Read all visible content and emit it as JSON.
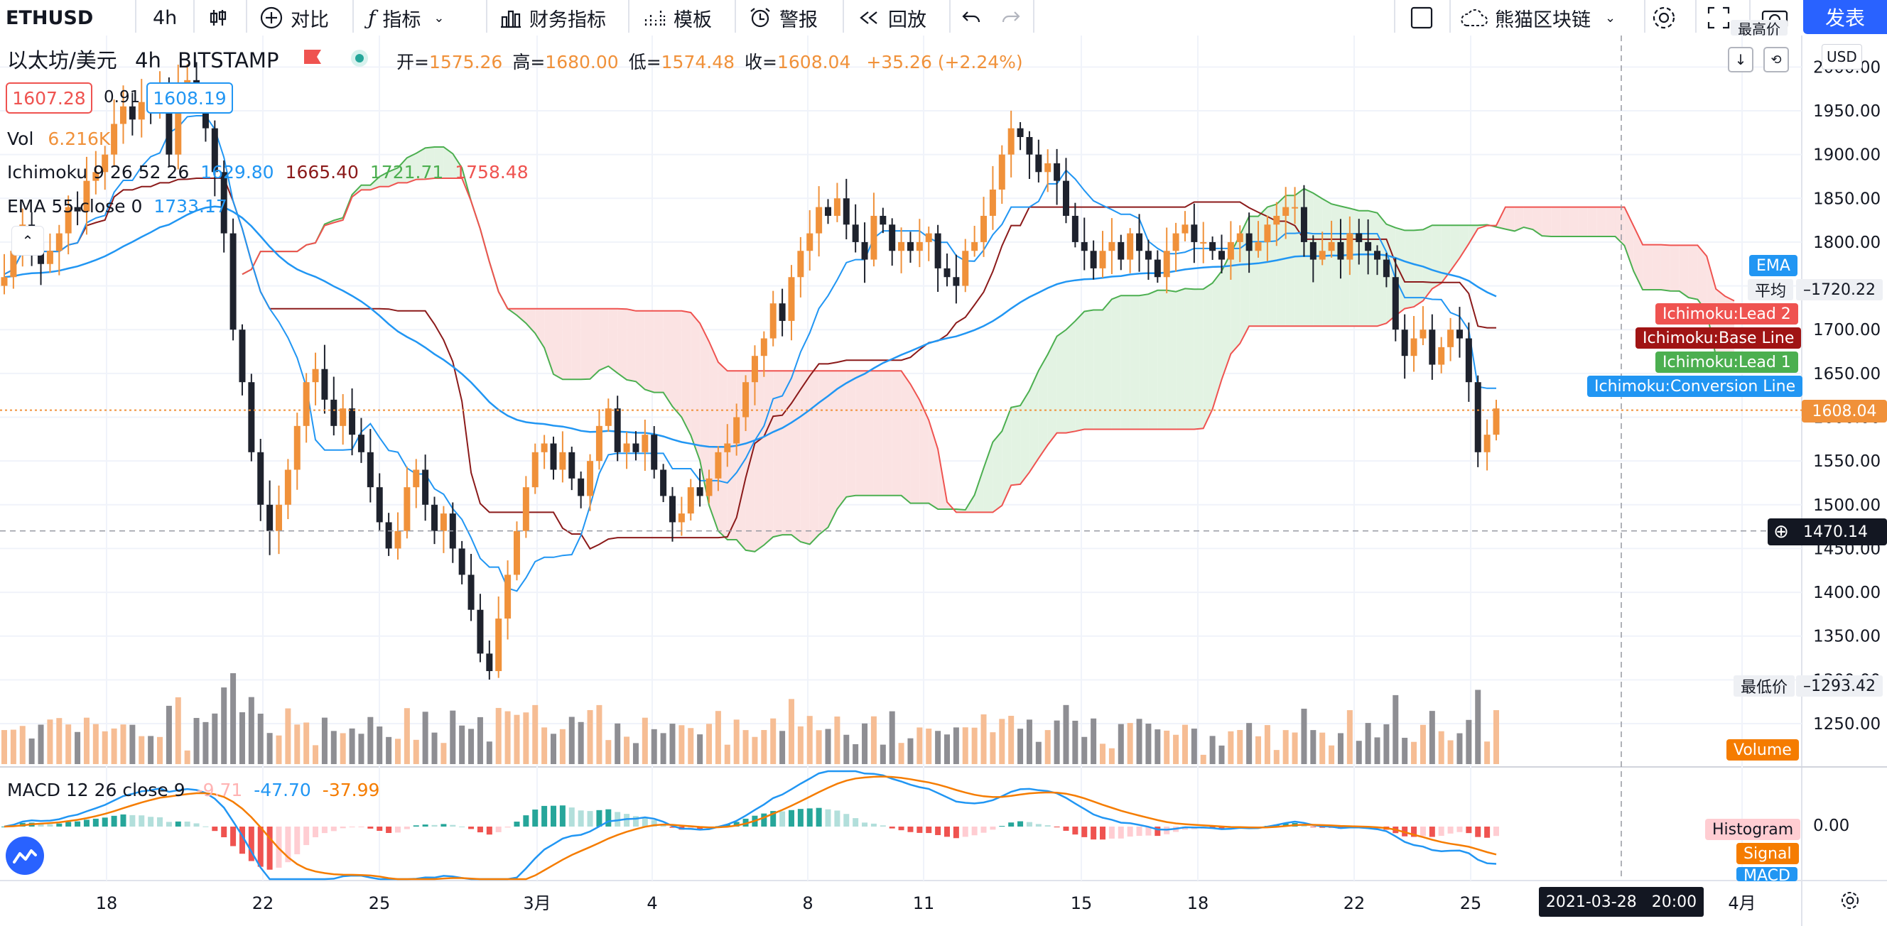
{
  "toolbar": {
    "symbol": "ETHUSD",
    "interval": "4h",
    "compare": "对比",
    "indicators": "指标",
    "financials": "财务指标",
    "templates": "模板",
    "alert": "警报",
    "replay": "回放",
    "layout_name": "熊猫区块链",
    "publish": "发表"
  },
  "legend": {
    "title": "以太坊/美元",
    "interval": "4h",
    "exchange": "BITSTAMP",
    "ohlc": [
      {
        "label": "开=",
        "value": "1575.26"
      },
      {
        "label": "高=",
        "value": "1680.00"
      },
      {
        "label": "低=",
        "value": "1574.48"
      },
      {
        "label": "收=",
        "value": "1608.04"
      }
    ],
    "change": "+35.26 (+2.24%)",
    "bid": "1607.28",
    "spread": "0.91",
    "ask": "1608.19",
    "vol_label": "Vol",
    "vol_value": "6.216K",
    "ichimoku_label": "Ichimoku 9 26 52 26",
    "ichimoku_values": [
      "1629.80",
      "1665.40",
      "1721.71",
      "1758.48"
    ],
    "ema_label": "EMA 55 close 0",
    "ema_value": "1733.17",
    "macd_label": "MACD 12 26 close 9",
    "macd_values": [
      "-9.71",
      "-47.70",
      "-37.99"
    ]
  },
  "price_axis": {
    "currency": "USD",
    "ticks": [
      "2000.00",
      "1950.00",
      "1900.00",
      "1850.00",
      "1800.00",
      "1750.00",
      "1700.00",
      "1650.00",
      "1600.00",
      "1550.00",
      "1500.00",
      "1450.00",
      "1400.00",
      "1350.00",
      "1300.00",
      "1250.00"
    ],
    "top_partial_label": "最高价",
    "avg_label": "平均",
    "avg_value": "1720.22",
    "min_label": "最低价",
    "min_value": "1293.42",
    "last_price": "1608.04",
    "crosshair_price": "1470.14",
    "macd_zero": "0.00"
  },
  "series_tags": {
    "ema": "EMA",
    "lead2": "Ichimoku:Lead 2",
    "base": "Ichimoku:Base Line",
    "lead1": "Ichimoku:Lead 1",
    "conversion": "Ichimoku:Conversion Line",
    "volume": "Volume",
    "histogram": "Histogram",
    "signal": "Signal",
    "macd": "MACD"
  },
  "time_axis": {
    "labels": [
      "18",
      "22",
      "25",
      "3月",
      "4",
      "8",
      "11",
      "15",
      "18",
      "22",
      "25",
      "4月"
    ],
    "crosshair_time": "2021-03-28   20:00"
  },
  "colors": {
    "up": "#f0913a",
    "down": "#1e222d",
    "ema": "#2196f3",
    "base": "#8b1a1a",
    "lead1": "#4caf50",
    "lead2": "#ef5350",
    "cloud_green": "#e3f3e3",
    "cloud_red": "#fbe3e3",
    "vol_up": "#f6bd94",
    "vol_down": "#8e8e93",
    "macd_line": "#2196f3",
    "signal_line": "#f57c00",
    "hist_up_strong": "#26a69a",
    "hist_up_weak": "#b2dfdb",
    "hist_down_strong": "#ef5350",
    "hist_down_weak": "#ffcdd2"
  },
  "chart_data": {
    "type": "candlestick",
    "symbol": "ETHUSD",
    "exchange": "BITSTAMP",
    "interval": "4h",
    "ylim": [
      1200,
      2050
    ],
    "x_labels": [
      "18",
      "22",
      "25",
      "3月",
      "4",
      "8",
      "11",
      "15",
      "18",
      "22",
      "25",
      "4月"
    ],
    "close": [
      1760,
      1790,
      1820,
      1800,
      1775,
      1790,
      1810,
      1840,
      1835,
      1870,
      1880,
      1900,
      1935,
      1955,
      1940,
      1960,
      1950,
      1975,
      1900,
      1980,
      1985,
      1960,
      1930,
      1880,
      1810,
      1700,
      1640,
      1560,
      1500,
      1470,
      1500,
      1540,
      1590,
      1640,
      1655,
      1620,
      1590,
      1610,
      1580,
      1560,
      1520,
      1480,
      1450,
      1470,
      1520,
      1540,
      1500,
      1470,
      1490,
      1450,
      1420,
      1380,
      1330,
      1310,
      1370,
      1420,
      1470,
      1520,
      1560,
      1570,
      1540,
      1560,
      1530,
      1510,
      1550,
      1590,
      1610,
      1560,
      1570,
      1560,
      1580,
      1540,
      1510,
      1480,
      1490,
      1520,
      1510,
      1530,
      1560,
      1570,
      1600,
      1640,
      1670,
      1690,
      1730,
      1710,
      1760,
      1790,
      1810,
      1840,
      1830,
      1850,
      1820,
      1800,
      1780,
      1830,
      1820,
      1790,
      1800,
      1790,
      1800,
      1810,
      1770,
      1760,
      1750,
      1790,
      1800,
      1830,
      1860,
      1900,
      1930,
      1920,
      1900,
      1880,
      1890,
      1870,
      1830,
      1800,
      1790,
      1770,
      1790,
      1800,
      1780,
      1810,
      1790,
      1780,
      1760,
      1790,
      1810,
      1820,
      1800,
      1800,
      1790,
      1780,
      1800,
      1810,
      1790,
      1800,
      1820,
      1830,
      1840,
      1840,
      1800,
      1780,
      1790,
      1800,
      1780,
      1810,
      1800,
      1790,
      1780,
      1760,
      1700,
      1670,
      1690,
      1700,
      1660,
      1680,
      1700,
      1690,
      1640,
      1560,
      1580,
      1610
    ],
    "series": [
      {
        "name": "Ichimoku:Conversion Line",
        "last": 1629.8
      },
      {
        "name": "Ichimoku:Base Line",
        "last": 1665.4
      },
      {
        "name": "Ichimoku:Lead 1",
        "last": 1721.71
      },
      {
        "name": "Ichimoku:Lead 2",
        "last": 1758.48
      },
      {
        "name": "EMA",
        "last": 1733.17
      }
    ],
    "macd": {
      "macd": -47.7,
      "signal": -37.99,
      "histogram": -9.71
    },
    "volume_last": "6.216K",
    "last_price": 1608.04,
    "crosshair_price": 1470.14
  }
}
